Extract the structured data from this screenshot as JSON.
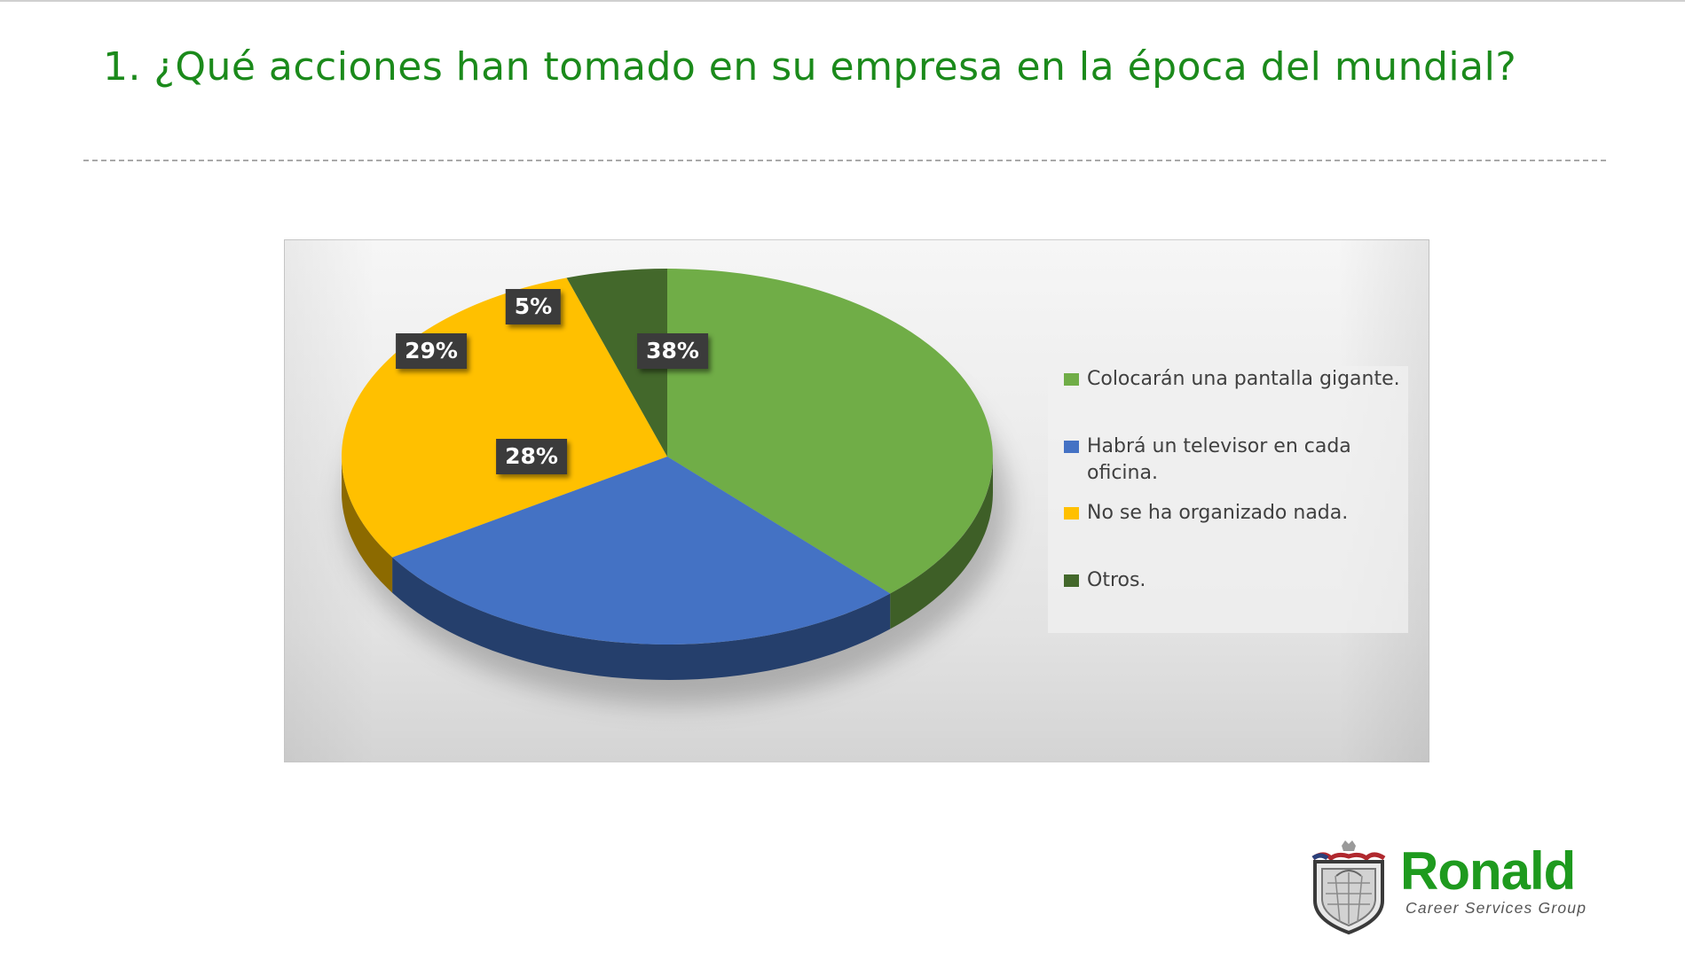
{
  "slide": {
    "title": "1.  ¿Qué acciones han tomado en su empresa en la época del mundial?"
  },
  "chart_data": {
    "type": "pie",
    "style": "3d",
    "title": "",
    "categories": [
      "Colocarán una pantalla gigante.",
      "Habrá un televisor en cada oficina.",
      "No se ha organizado nada.",
      "Otros."
    ],
    "values": [
      38,
      28,
      29,
      5
    ],
    "labels": [
      "38%",
      "28%",
      "29%",
      "5%"
    ],
    "colors": [
      "#70ad47",
      "#4472c4",
      "#ffc000",
      "#43682b"
    ],
    "legend_position": "right",
    "start_angle_deg": 0,
    "direction": "clockwise"
  },
  "legend": {
    "items": [
      {
        "label": "Colocarán una pantalla gigante.",
        "color": "#70ad47"
      },
      {
        "label": "Habrá un televisor en cada oficina.",
        "color": "#4472c4"
      },
      {
        "label": "No se ha organizado nada.",
        "color": "#ffc000"
      },
      {
        "label": "Otros.",
        "color": "#43682b"
      }
    ]
  },
  "logo": {
    "name": "Ronald",
    "tagline": "Career Services Group",
    "brand_color": "#1e9a1e"
  },
  "colors": {
    "title": "#1b8a1b",
    "label_bg": "#3b3b3b"
  }
}
